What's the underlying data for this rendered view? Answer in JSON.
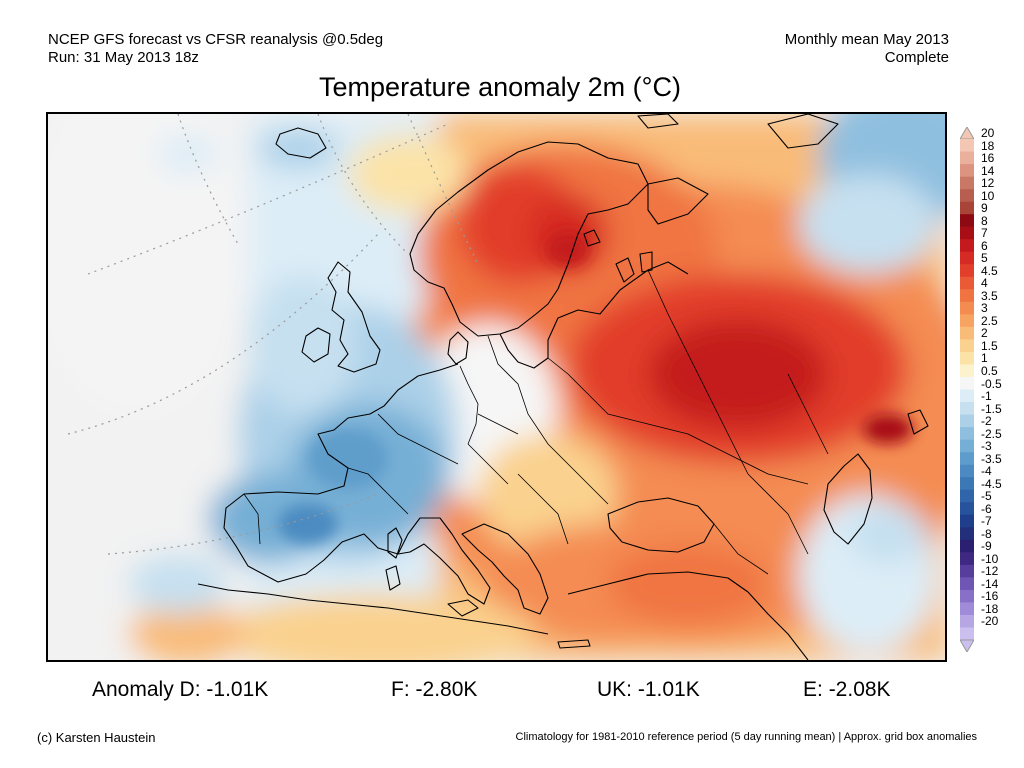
{
  "header": {
    "left_line1": "NCEP GFS forecast vs CFSR reanalysis @0.5deg",
    "left_line2": "Run: 31 May 2013 18z",
    "right_line1": "Monthly mean May 2013",
    "right_line2": "Complete"
  },
  "title": "Temperature anomaly 2m (°C)",
  "map": {
    "region": "Europe",
    "colors": {
      "land_outline": "#000000",
      "border_line": "#000000",
      "graticule": "#9a9a9a",
      "neutral": "#f2f2f2"
    }
  },
  "colorbar": {
    "levels": [
      "20",
      "18",
      "16",
      "14",
      "12",
      "10",
      "9",
      "8",
      "7",
      "6",
      "5",
      "4.5",
      "4",
      "3.5",
      "3",
      "2.5",
      "2",
      "1.5",
      "1",
      "0.5",
      "-0.5",
      "-1",
      "-1.5",
      "-2",
      "-2.5",
      "-3",
      "-3.5",
      "-4",
      "-4.5",
      "-5",
      "-6",
      "-7",
      "-8",
      "-9",
      "-10",
      "-12",
      "-14",
      "-16",
      "-18",
      "-20"
    ],
    "colors": [
      "#f4c6b4",
      "#eab09c",
      "#dc9480",
      "#c97866",
      "#b85e50",
      "#a84438",
      "#8e0a12",
      "#a80e16",
      "#c41a1e",
      "#d62a24",
      "#e23e2c",
      "#ea5a36",
      "#f07442",
      "#f48c52",
      "#f7a463",
      "#f9bb78",
      "#fad18e",
      "#fbe3a8",
      "#fcf2cc",
      "#f6f6f6",
      "#ddedf7",
      "#c6e0f0",
      "#abd0e8",
      "#8fbfdf",
      "#76afd5",
      "#5e9dcb",
      "#4b8bc1",
      "#3c78b6",
      "#3165aa",
      "#27529c",
      "#1f3f8c",
      "#22307c",
      "#2a1f70",
      "#3f2882",
      "#573e9c",
      "#6f56b4",
      "#8870c8",
      "#a08bd8",
      "#b6a6e4",
      "#cabfee"
    ]
  },
  "stats": [
    {
      "label": "Anomaly D:",
      "value": "-1.01K"
    },
    {
      "label": "F:",
      "value": "-2.80K"
    },
    {
      "label": "UK:",
      "value": "-1.01K"
    },
    {
      "label": "E:",
      "value": "-2.08K"
    }
  ],
  "footer": {
    "credit": "(c) Karsten Haustein",
    "note": "Climatology for 1981-2010 reference period (5 day running mean) | Approx. grid box anomalies"
  }
}
